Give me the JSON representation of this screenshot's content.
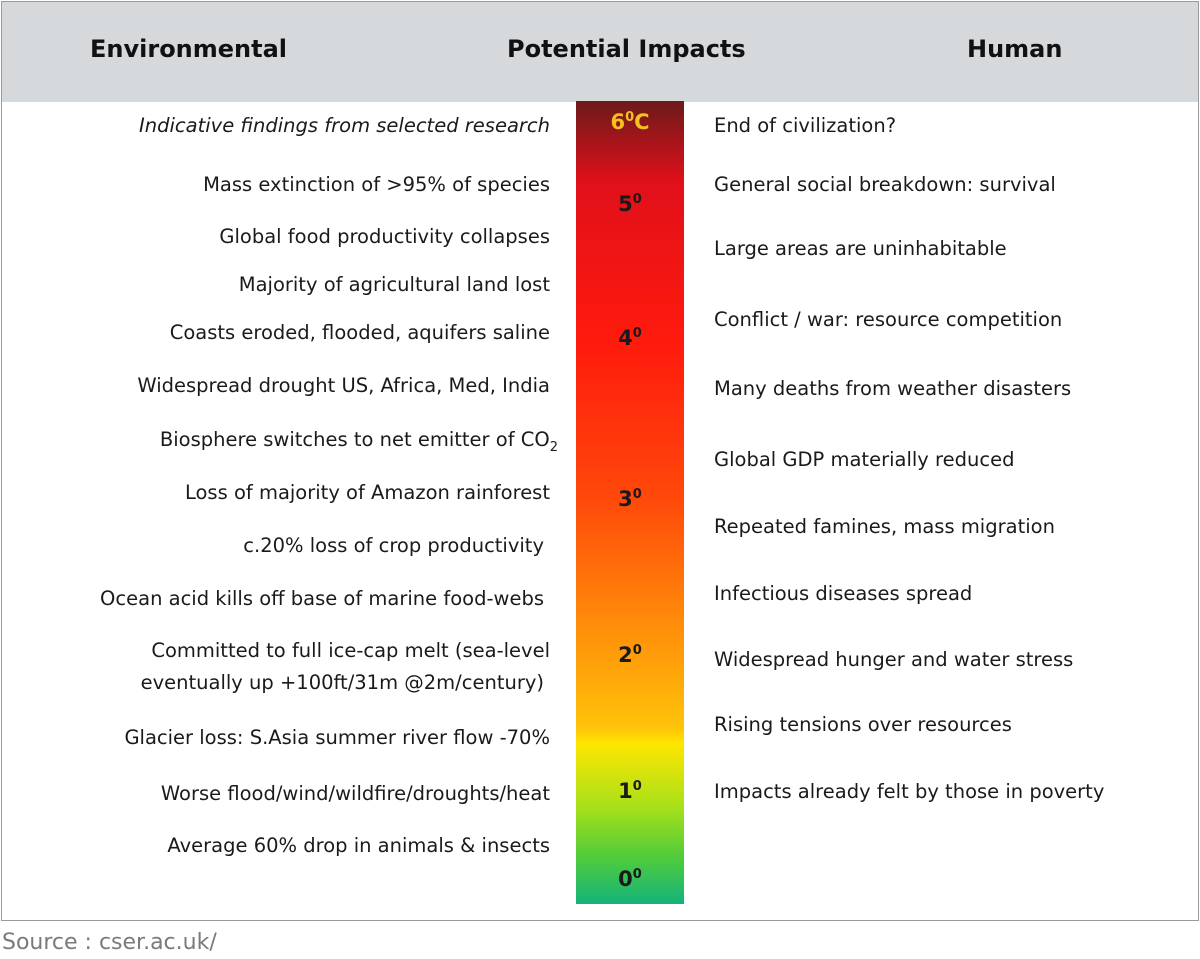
{
  "header": {
    "environmental": "Environmental",
    "potential_impacts": "Potential Impacts",
    "human": "Human"
  },
  "scale": {
    "unit": "C",
    "ticks": [
      {
        "value": 6,
        "label": "6",
        "sup": "0",
        "suffix": "C",
        "color": "#f4c21c"
      },
      {
        "value": 5,
        "label": "5",
        "sup": "0",
        "suffix": ""
      },
      {
        "value": 4,
        "label": "4",
        "sup": "0",
        "suffix": ""
      },
      {
        "value": 3,
        "label": "3",
        "sup": "0",
        "suffix": ""
      },
      {
        "value": 2,
        "label": "2",
        "sup": "0",
        "suffix": ""
      },
      {
        "value": 1,
        "label": "1",
        "sup": "0",
        "suffix": ""
      },
      {
        "value": 0,
        "label": "0",
        "sup": "0",
        "suffix": ""
      }
    ],
    "gradient": [
      {
        "stop": 0.0,
        "color": "#6b1a1a"
      },
      {
        "stop": 0.1,
        "color": "#e0101a"
      },
      {
        "stop": 0.3,
        "color": "#ff1a0d"
      },
      {
        "stop": 0.5,
        "color": "#ff4a0a"
      },
      {
        "stop": 0.65,
        "color": "#ff8c0a"
      },
      {
        "stop": 0.78,
        "color": "#ffc20a"
      },
      {
        "stop": 0.8,
        "color": "#ffe600"
      },
      {
        "stop": 0.88,
        "color": "#a6e01a"
      },
      {
        "stop": 0.94,
        "color": "#52cc3a"
      },
      {
        "stop": 1.0,
        "color": "#14b37a"
      }
    ]
  },
  "environmental": {
    "note": "Indicative findings from selected research",
    "items": [
      "Mass extinction of >95% of species",
      "Global food productivity collapses",
      "Majority of agricultural land lost",
      "Coasts eroded, flooded, aquifers saline",
      "Widespread drought US, Africa, Med, India",
      "Biosphere switches to net emitter of CO",
      "Loss of majority of Amazon rainforest",
      "c.20% loss of crop productivity",
      "Ocean acid kills off base of marine food-webs",
      "Committed to full ice-cap melt (sea-level",
      "eventually up +100ft/31m @2m/century)",
      "Glacier loss: S.Asia summer river flow -70%",
      "Worse flood/wind/wildfire/droughts/heat",
      "Average 60% drop in animals & insects"
    ],
    "co2_subscript": "2"
  },
  "human": {
    "items": [
      "End of civilization?",
      "General social breakdown: survival",
      "Large areas are uninhabitable",
      "Conflict / war: resource competition",
      "Many deaths from weather disasters",
      "Global GDP materially reduced",
      "Repeated famines, mass migration",
      "Infectious diseases spread",
      "Widespread hunger and water stress",
      "Rising tensions over resources",
      "Impacts already felt by those in poverty"
    ]
  },
  "source": "Source : cser.ac.uk/"
}
